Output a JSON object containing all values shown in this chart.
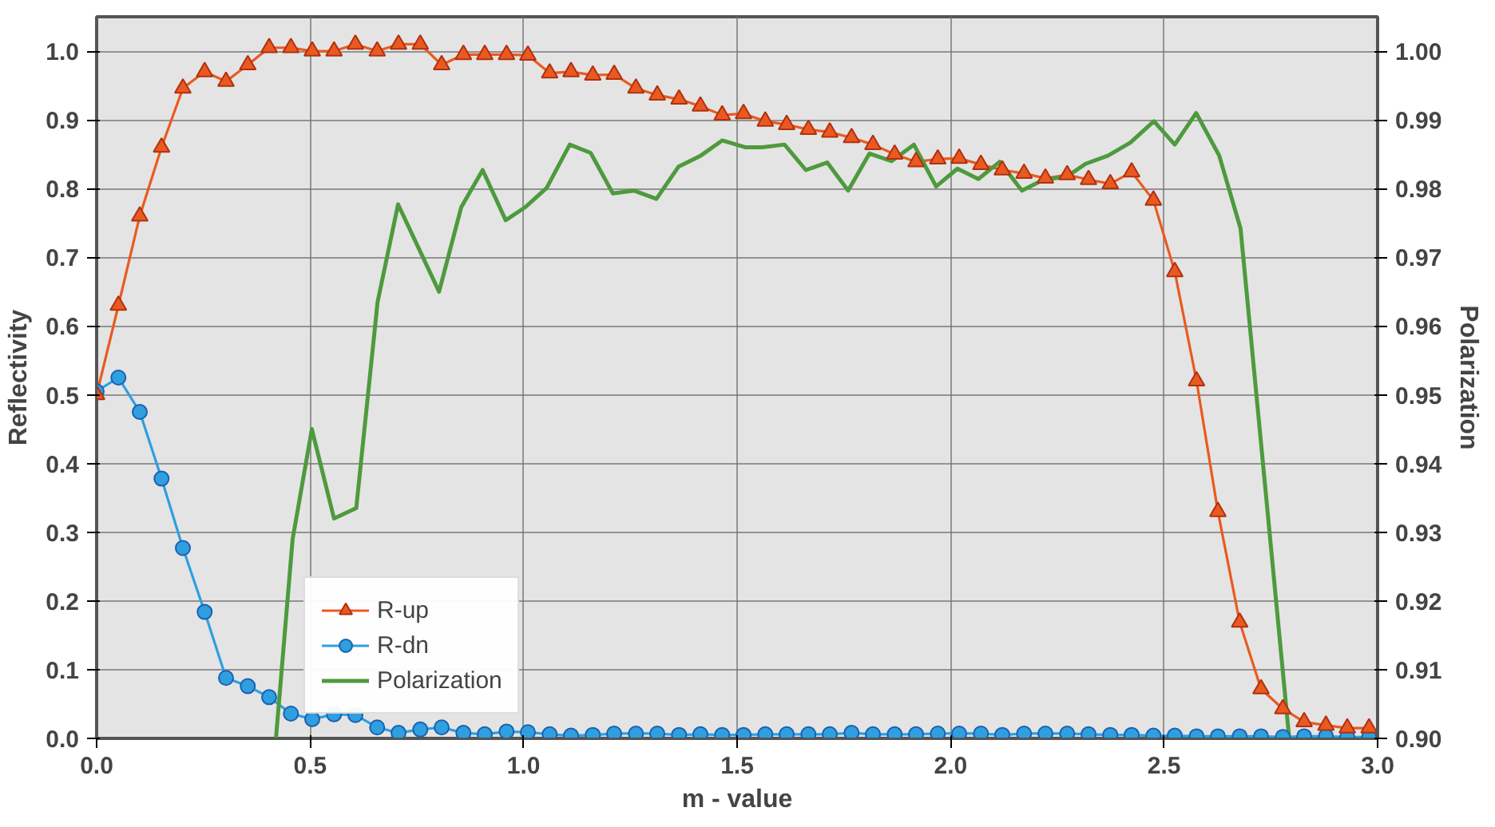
{
  "chart_data": {
    "type": "line",
    "xlabel": "m - value",
    "ylabel": "Reflectivity",
    "y2label": "Polarization",
    "xlim": [
      0,
      3
    ],
    "xticks": [
      {
        "value": 0,
        "label": "0.0"
      },
      {
        "value": 0.5,
        "label": "0.5"
      },
      {
        "value": 1,
        "label": "1.0"
      },
      {
        "value": 1.5,
        "label": "1.5"
      },
      {
        "value": 2,
        "label": "2.0"
      },
      {
        "value": 2.5,
        "label": "2.5"
      },
      {
        "value": 3,
        "label": "3.0"
      }
    ],
    "ylim": [
      0,
      1.05
    ],
    "yticks": [
      {
        "value": 0,
        "label": "0.0"
      },
      0.1,
      0.2,
      0.3,
      0.4,
      0.5,
      0.6,
      0.7,
      0.8,
      0.9,
      {
        "value": 1,
        "label": "1.0"
      }
    ],
    "y2lim": [
      0.9,
      1.005
    ],
    "y2ticks": [
      {
        "value": 0.9,
        "label": "0.90"
      },
      0.91,
      0.92,
      0.93,
      0.94,
      0.95,
      0.96,
      0.97,
      0.98,
      0.99,
      {
        "value": 1,
        "label": "1.00"
      }
    ],
    "grid": true,
    "legend": "bottom left",
    "x": [
      0,
      0.051,
      0.101,
      0.152,
      0.202,
      0.253,
      0.303,
      0.354,
      0.404,
      0.455,
      0.505,
      0.556,
      0.606,
      0.657,
      0.707,
      0.758,
      0.808,
      0.859,
      0.909,
      0.96,
      1.01,
      1.061,
      1.111,
      1.162,
      1.212,
      1.263,
      1.313,
      1.364,
      1.414,
      1.465,
      1.515,
      1.566,
      1.616,
      1.667,
      1.717,
      1.768,
      1.818,
      1.869,
      1.919,
      1.97,
      2.02,
      2.071,
      2.121,
      2.172,
      2.222,
      2.273,
      2.323,
      2.374,
      2.424,
      2.475,
      2.525,
      2.576,
      2.626,
      2.677,
      2.727,
      2.778,
      2.828,
      2.879,
      2.929,
      2.98
    ],
    "series": [
      {
        "name": "R-up",
        "color": "#ea5a20",
        "marker": "triangle",
        "line_style": "solid",
        "values": [
          0.5,
          0.63,
          0.76,
          0.86,
          0.946,
          0.97,
          0.956,
          0.98,
          1.005,
          1.005,
          1.0,
          1.0,
          1.01,
          1.0,
          1.01,
          1.01,
          0.98,
          0.995,
          0.995,
          0.995,
          0.994,
          0.968,
          0.97,
          0.965,
          0.966,
          0.946,
          0.936,
          0.93,
          0.92,
          0.907,
          0.909,
          0.898,
          0.893,
          0.886,
          0.882,
          0.874,
          0.864,
          0.85,
          0.839,
          0.843,
          0.844,
          0.835,
          0.827,
          0.822,
          0.815,
          0.82,
          0.813,
          0.807,
          0.824,
          0.783,
          0.679,
          0.52,
          0.33,
          0.169,
          0.072,
          0.043,
          0.024,
          0.019,
          0.015,
          0.015
        ]
      },
      {
        "name": "R-dn",
        "color": "#2f9fe0",
        "marker": "circle",
        "line_style": "solid",
        "values": [
          0.505,
          0.525,
          0.475,
          0.378,
          0.277,
          0.184,
          0.088,
          0.076,
          0.06,
          0.036,
          0.028,
          0.035,
          0.034,
          0.016,
          0.008,
          0.013,
          0.016,
          0.008,
          0.006,
          0.01,
          0.009,
          0.006,
          0.004,
          0.005,
          0.007,
          0.007,
          0.007,
          0.005,
          0.006,
          0.005,
          0.005,
          0.006,
          0.006,
          0.006,
          0.006,
          0.008,
          0.006,
          0.006,
          0.006,
          0.007,
          0.007,
          0.007,
          0.005,
          0.007,
          0.007,
          0.007,
          0.006,
          0.005,
          0.005,
          0.004,
          0.004,
          0.003,
          0.003,
          0.003,
          0.003,
          0.002,
          0.003,
          0.003,
          0.002,
          0.002
        ]
      },
      {
        "name": "Polarization",
        "color": "#4e9a3e",
        "marker": "none",
        "line_style": "solid",
        "axis": "y2",
        "x": [
          0.42,
          0.459,
          0.504,
          0.556,
          0.608,
          0.658,
          0.706,
          0.802,
          0.854,
          0.904,
          0.958,
          1.004,
          1.054,
          1.108,
          1.157,
          1.209,
          1.259,
          1.311,
          1.363,
          1.415,
          1.465,
          1.52,
          1.559,
          1.611,
          1.661,
          1.711,
          1.76,
          1.81,
          1.862,
          1.914,
          1.966,
          2.016,
          2.065,
          2.115,
          2.167,
          2.218,
          2.271,
          2.316,
          2.369,
          2.421,
          2.476,
          2.525,
          2.575,
          2.629,
          2.679,
          2.793
        ],
        "values": [
          0.9,
          0.929,
          0.945,
          0.932,
          0.9335,
          0.9635,
          0.9777,
          0.965,
          0.9773,
          0.9827,
          0.9754,
          0.9773,
          0.9801,
          0.9864,
          0.9852,
          0.9793,
          0.9797,
          0.9785,
          0.9832,
          0.9848,
          0.987,
          0.986,
          0.986,
          0.9864,
          0.9827,
          0.9838,
          0.9797,
          0.9851,
          0.984,
          0.9864,
          0.9803,
          0.9829,
          0.9814,
          0.9839,
          0.9797,
          0.9813,
          0.9817,
          0.9836,
          0.9848,
          0.9867,
          0.9898,
          0.9864,
          0.991,
          0.9848,
          0.9742,
          0.9
        ]
      }
    ]
  }
}
